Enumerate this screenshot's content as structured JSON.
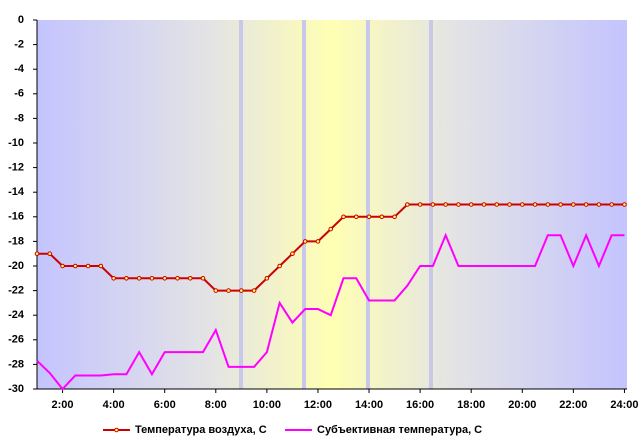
{
  "chart_data": {
    "type": "line",
    "x": [
      1,
      1.5,
      2,
      2.5,
      3,
      3.5,
      4,
      4.5,
      5,
      5.5,
      6,
      6.5,
      7,
      7.5,
      8,
      8.5,
      9,
      9.5,
      10,
      10.5,
      11,
      11.5,
      12,
      12.5,
      13,
      13.5,
      14,
      14.5,
      15,
      15.5,
      16,
      16.5,
      17,
      17.5,
      18,
      18.5,
      19,
      19.5,
      20,
      20.5,
      21,
      21.5,
      22,
      22.5,
      23,
      23.5,
      24
    ],
    "series": [
      {
        "name": "Температура воздуха, С",
        "color": "#cc0000",
        "marker": true,
        "values": [
          -19,
          -19,
          -20,
          -20,
          -20,
          -20,
          -21,
          -21,
          -21,
          -21,
          -21,
          -21,
          -21,
          -21,
          -22,
          -22,
          -22,
          -22,
          -21,
          -20,
          -19,
          -18,
          -18,
          -17,
          -16,
          -16,
          -16,
          -16,
          -16,
          -15,
          -15,
          -15,
          -15,
          -15,
          -15,
          -15,
          -15,
          -15,
          -15,
          -15,
          -15,
          -15,
          -15,
          -15,
          -15,
          -15,
          -15
        ]
      },
      {
        "name": "Субъективная температура, С",
        "color": "#ff00ff",
        "marker": false,
        "values": [
          -27.7,
          -28.7,
          -30,
          -28.9,
          -28.9,
          -28.9,
          -28.8,
          -28.8,
          -27,
          -28.8,
          -27,
          -27,
          -27,
          -27,
          -25.2,
          -28.2,
          -28.2,
          -28.2,
          -27,
          -23,
          -24.6,
          -23.5,
          -23.5,
          -24,
          -21,
          -21,
          -22.8,
          -22.8,
          -22.8,
          -21.6,
          -20,
          -20,
          -17.5,
          -20,
          -20,
          -20,
          -20,
          -20,
          -20,
          -20,
          -17.5,
          -17.5,
          -20,
          -17.5,
          -20,
          -17.5,
          -17.5
        ]
      }
    ],
    "xlim": [
      1,
      24.1
    ],
    "xticks": [
      {
        "value": 2,
        "label": "2:00"
      },
      {
        "value": 4,
        "label": "4:00"
      },
      {
        "value": 6,
        "label": "6:00"
      },
      {
        "value": 8,
        "label": "8:00"
      },
      {
        "value": 10,
        "label": "10:00"
      },
      {
        "value": 12,
        "label": "12:00"
      },
      {
        "value": 14,
        "label": "14:00"
      },
      {
        "value": 16,
        "label": "16:00"
      },
      {
        "value": 18,
        "label": "18:00"
      },
      {
        "value": 20,
        "label": "20:00"
      },
      {
        "value": 22,
        "label": "22:00"
      },
      {
        "value": 24,
        "label": "24:00"
      }
    ],
    "ylim": [
      -30,
      0
    ],
    "yticks": [
      0,
      -2,
      -4,
      -6,
      -8,
      -10,
      -12,
      -14,
      -16,
      -18,
      -20,
      -22,
      -24,
      -26,
      -28,
      -30
    ],
    "legend": "bottom"
  }
}
